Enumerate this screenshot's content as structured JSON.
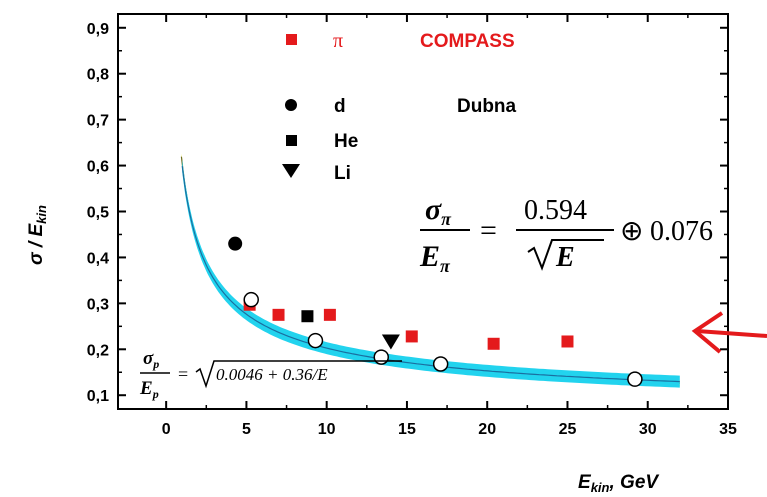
{
  "colors": {
    "compass": "#e41a1c",
    "cyan_band": "#22d3ee",
    "cyan_line": "#1a6fa0",
    "yellow_band": "#f5f03a",
    "yellow_line": "#6b6b20",
    "arrow": "#e41a1c"
  },
  "chart_data": {
    "type": "scatter",
    "xlabel_main": "E",
    "xlabel_sub": "kin",
    "xlabel_tail": ", GeV",
    "ylabel_main": "σ / E",
    "ylabel_sub": "kin",
    "xlim": [
      -3,
      35
    ],
    "ylim": [
      0.07,
      0.93
    ],
    "x_ticks": [
      0,
      5,
      10,
      15,
      20,
      25,
      30,
      35
    ],
    "y_ticks": [
      0.1,
      0.2,
      0.3,
      0.4,
      0.5,
      0.6,
      0.7,
      0.8,
      0.9
    ],
    "x_tick_labels": [
      "0",
      "5",
      "10",
      "15",
      "20",
      "25",
      "30",
      "35"
    ],
    "y_tick_labels": [
      "0,1",
      "0,2",
      "0,3",
      "0,4",
      "0,5",
      "0,6",
      "0,7",
      "0,8",
      "0,9"
    ],
    "legend": {
      "pi_symbol": "π",
      "compass_label": "COMPASS",
      "dubna_label": "Dubna",
      "d_label": "d",
      "he_label": "He",
      "li_label": "Li"
    },
    "series": [
      {
        "name": "π COMPASS",
        "marker": "square",
        "color": "#e41a1c",
        "points": [
          [
            5.2,
            0.297
          ],
          [
            7.0,
            0.275
          ],
          [
            10.2,
            0.275
          ],
          [
            15.3,
            0.228
          ],
          [
            20.4,
            0.212
          ],
          [
            25.0,
            0.217
          ]
        ]
      },
      {
        "name": "d",
        "marker": "circle",
        "color": "#000000",
        "points": [
          [
            4.3,
            0.43
          ]
        ]
      },
      {
        "name": "He",
        "marker": "square",
        "color": "#000000",
        "points": [
          [
            8.8,
            0.272
          ]
        ]
      },
      {
        "name": "Li",
        "marker": "triangle",
        "color": "#000000",
        "points": [
          [
            14.0,
            0.217
          ]
        ]
      },
      {
        "name": "p",
        "marker": "open-circle",
        "color": "#000000",
        "points": [
          [
            5.3,
            0.308
          ],
          [
            9.3,
            0.219
          ],
          [
            13.4,
            0.183
          ],
          [
            17.1,
            0.168
          ],
          [
            29.2,
            0.135
          ]
        ]
      }
    ],
    "fits": [
      {
        "name": "pion fit",
        "formula": "sqrt(0.594^2/E + 0.076^2)",
        "a": 0.594,
        "c": 0.076,
        "x_range": [
          1.0,
          32.0
        ],
        "band": "cyan"
      },
      {
        "name": "proton fit",
        "formula": "sqrt(0.0046 + 0.36/E)",
        "k": 0.0046,
        "b": 0.36,
        "x_range": [
          0.95,
          32.0
        ],
        "band": "yellow"
      }
    ],
    "formula_pi": {
      "num_main": "σ",
      "num_sub": "π",
      "den_main": "E",
      "den_sub": "π",
      "equals": "=",
      "rhs_num": "0.594",
      "rhs_den": "E",
      "oplus": "⊕",
      "constant": "0.076"
    },
    "formula_p": {
      "num_main": "σ",
      "num_sub": "p",
      "den_main": "E",
      "den_sub": "p",
      "equals": "=",
      "rhs": "0.0046 + 0.36/E"
    }
  }
}
